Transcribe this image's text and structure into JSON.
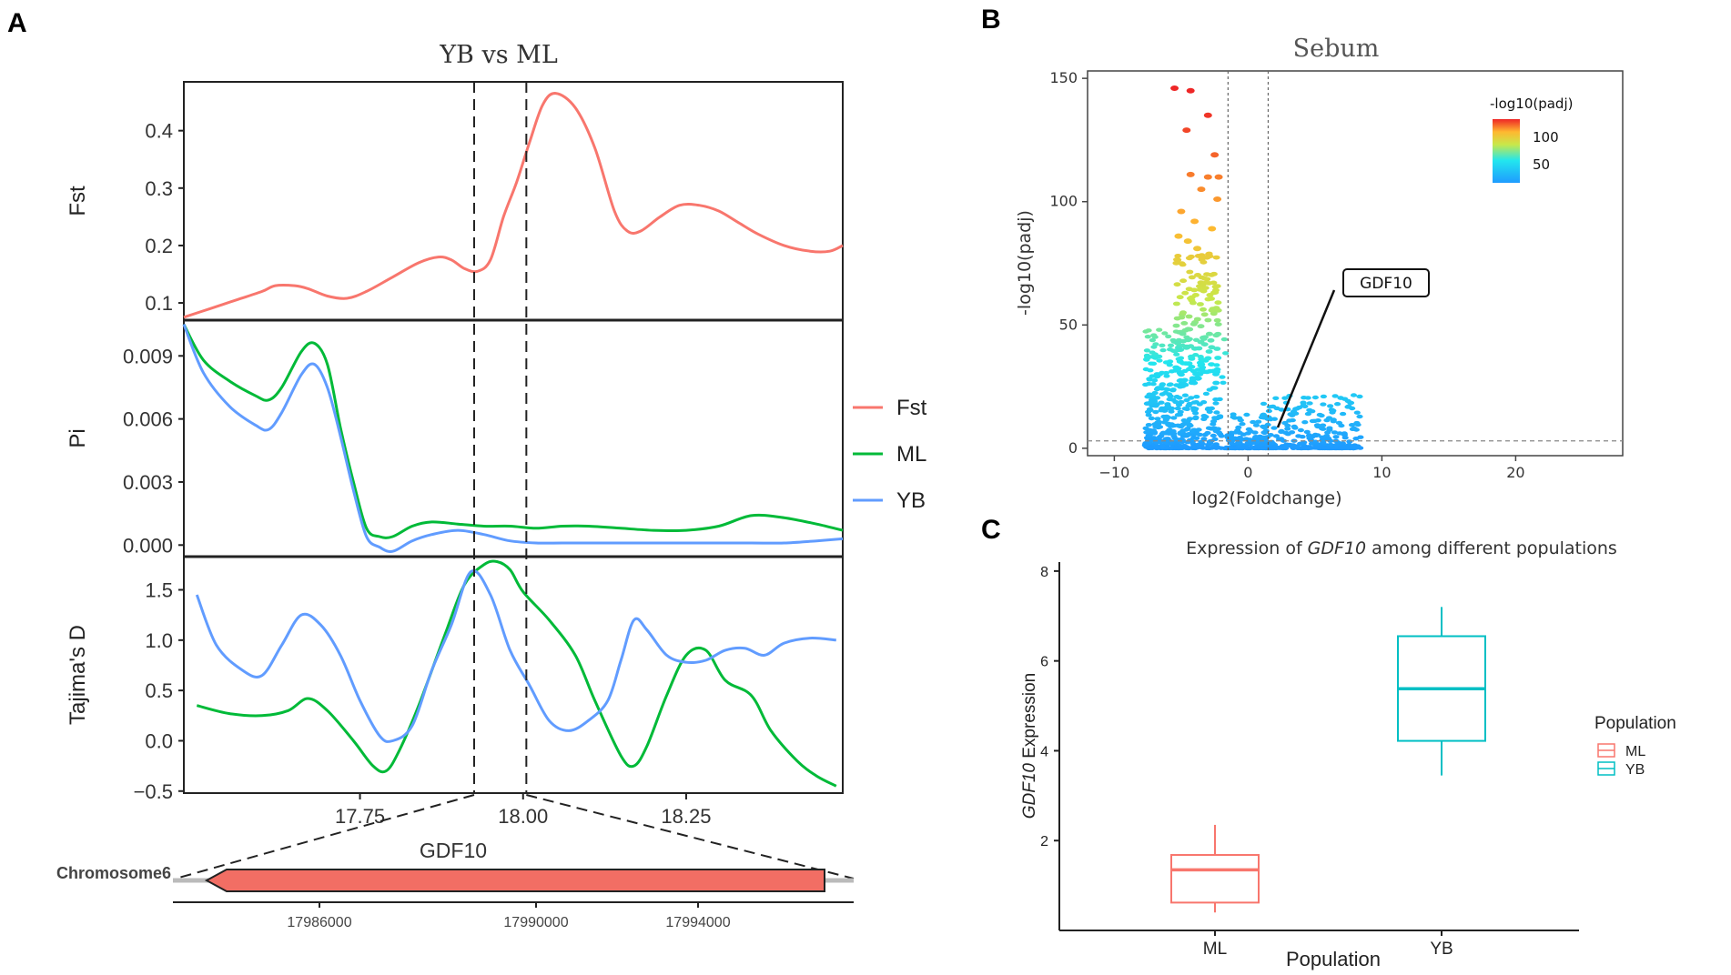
{
  "panel_letters": [
    "A",
    "B",
    "C"
  ],
  "chart_data": [
    {
      "type": "line",
      "title": "YB vs ML",
      "xlabel": "",
      "x_ticks": [
        "17.75",
        "18.00",
        "18.25"
      ],
      "xlim": [
        17.48,
        18.49
      ],
      "selected_region": [
        17.925,
        18.005
      ],
      "colors": {
        "Fst": "#F8766D",
        "ML": "#00BA38",
        "YB": "#619CFF"
      },
      "legend": [
        "Fst",
        "ML",
        "YB"
      ],
      "subplots": [
        {
          "ylabel": "Fst",
          "ylim": [
            0.07,
            0.485
          ],
          "y_ticks": [
            "0.1",
            "0.2",
            "0.3",
            "0.4"
          ],
          "series": [
            {
              "name": "Fst",
              "x": [
                17.48,
                17.52,
                17.56,
                17.6,
                17.62,
                17.65,
                17.67,
                17.7,
                17.73,
                17.76,
                17.8,
                17.84,
                17.87,
                17.89,
                17.91,
                17.93,
                17.95,
                17.97,
                17.99,
                18.01,
                18.03,
                18.05,
                18.08,
                18.11,
                18.14,
                18.16,
                18.18,
                18.21,
                18.24,
                18.27,
                18.3,
                18.33,
                18.36,
                18.4,
                18.44,
                18.47,
                18.49
              ],
              "values": [
                0.075,
                0.09,
                0.105,
                0.12,
                0.13,
                0.13,
                0.125,
                0.112,
                0.108,
                0.12,
                0.145,
                0.17,
                0.18,
                0.175,
                0.16,
                0.155,
                0.175,
                0.25,
                0.31,
                0.38,
                0.445,
                0.465,
                0.44,
                0.37,
                0.26,
                0.225,
                0.225,
                0.25,
                0.27,
                0.27,
                0.26,
                0.24,
                0.22,
                0.2,
                0.19,
                0.19,
                0.2
              ]
            }
          ]
        },
        {
          "ylabel": "Pi",
          "ylim": [
            -0.00055,
            0.0107
          ],
          "y_ticks": [
            "0.000",
            "0.003",
            "0.006",
            "0.009"
          ],
          "series": [
            {
              "name": "ML",
              "x": [
                17.48,
                17.51,
                17.55,
                17.59,
                17.61,
                17.63,
                17.66,
                17.68,
                17.7,
                17.72,
                17.74,
                17.76,
                17.78,
                17.8,
                17.83,
                17.86,
                17.9,
                17.94,
                17.98,
                18.02,
                18.06,
                18.1,
                18.15,
                18.2,
                18.25,
                18.3,
                18.35,
                18.4,
                18.45,
                18.49
              ],
              "values": [
                0.0105,
                0.0088,
                0.0078,
                0.0071,
                0.0069,
                0.0075,
                0.0092,
                0.0096,
                0.0086,
                0.0056,
                0.003,
                0.0008,
                0.0004,
                0.0004,
                0.0009,
                0.0011,
                0.001,
                0.0009,
                0.0009,
                0.0008,
                0.0009,
                0.0009,
                0.0008,
                0.0007,
                0.0007,
                0.0009,
                0.0014,
                0.0013,
                0.001,
                0.0007
              ]
            },
            {
              "name": "YB",
              "x": [
                17.48,
                17.51,
                17.55,
                17.59,
                17.61,
                17.63,
                17.66,
                17.68,
                17.7,
                17.72,
                17.74,
                17.76,
                17.78,
                17.8,
                17.83,
                17.86,
                17.9,
                17.94,
                17.98,
                18.02,
                18.06,
                18.1,
                18.15,
                18.2,
                18.25,
                18.3,
                18.35,
                18.4,
                18.45,
                18.49
              ],
              "values": [
                0.0105,
                0.0082,
                0.0066,
                0.0057,
                0.0055,
                0.0063,
                0.0081,
                0.0086,
                0.0075,
                0.0052,
                0.0026,
                0.0004,
                -0.0001,
                -0.0003,
                0.0002,
                0.0005,
                0.0007,
                0.0005,
                0.0002,
                0.0001,
                0.0001,
                0.0001,
                0.0001,
                0.0001,
                0.0001,
                0.0001,
                0.0001,
                0.0001,
                0.0002,
                0.0003
              ]
            }
          ]
        },
        {
          "ylabel": "Tajima's D",
          "ylim": [
            -0.52,
            1.83
          ],
          "y_ticks": [
            "−0.5",
            "0.0",
            "0.5",
            "1.0",
            "1.5"
          ],
          "series": [
            {
              "name": "ML",
              "x": [
                17.5,
                17.55,
                17.6,
                17.64,
                17.67,
                17.7,
                17.74,
                17.77,
                17.79,
                17.81,
                17.84,
                17.88,
                17.91,
                17.94,
                17.96,
                17.98,
                18.0,
                18.04,
                18.08,
                18.11,
                18.15,
                18.17,
                18.19,
                18.22,
                18.25,
                18.28,
                18.31,
                18.35,
                18.38,
                18.42,
                18.45,
                18.48
              ],
              "values": [
                0.35,
                0.27,
                0.25,
                0.3,
                0.42,
                0.3,
                0.0,
                -0.25,
                -0.3,
                -0.1,
                0.35,
                1.05,
                1.55,
                1.75,
                1.78,
                1.7,
                1.48,
                1.2,
                0.85,
                0.4,
                -0.15,
                -0.25,
                -0.05,
                0.45,
                0.85,
                0.9,
                0.6,
                0.45,
                0.1,
                -0.2,
                -0.35,
                -0.45
              ]
            },
            {
              "name": "YB",
              "x": [
                17.5,
                17.53,
                17.57,
                17.6,
                17.63,
                17.66,
                17.69,
                17.72,
                17.75,
                17.78,
                17.8,
                17.83,
                17.86,
                17.89,
                17.92,
                17.95,
                17.98,
                18.01,
                18.04,
                18.07,
                18.1,
                18.13,
                18.15,
                18.17,
                18.19,
                18.22,
                18.25,
                18.28,
                18.31,
                18.34,
                18.37,
                18.4,
                18.44,
                18.48
              ],
              "values": [
                1.45,
                0.95,
                0.7,
                0.65,
                0.95,
                1.25,
                1.15,
                0.85,
                0.4,
                0.05,
                0.0,
                0.15,
                0.7,
                1.15,
                1.68,
                1.45,
                0.9,
                0.55,
                0.2,
                0.1,
                0.2,
                0.4,
                0.8,
                1.2,
                1.1,
                0.85,
                0.78,
                0.8,
                0.9,
                0.92,
                0.85,
                0.97,
                1.02,
                1.0
              ]
            }
          ]
        }
      ]
    },
    {
      "type": "scatter",
      "title": "Sebum",
      "xlabel": "log2(Foldchange)",
      "ylabel": "-log10(padj)",
      "xlim": [
        -12,
        28
      ],
      "ylim": [
        -3,
        153
      ],
      "x_ticks": [
        -10,
        0,
        10,
        20
      ],
      "y_ticks": [
        0,
        50,
        100,
        150
      ],
      "vlines": [
        -1.5,
        1.5
      ],
      "hline": 3,
      "legend_title": "-log10(padj)",
      "legend_ticks": [
        50,
        100
      ],
      "annotation": {
        "label": "GDF10",
        "x": 1.8,
        "y": 6
      },
      "top_points": [
        {
          "x": -5.5,
          "y": 146
        },
        {
          "x": -4.3,
          "y": 145
        },
        {
          "x": -3.0,
          "y": 135
        },
        {
          "x": -4.6,
          "y": 129
        },
        {
          "x": -2.5,
          "y": 119
        },
        {
          "x": -4.3,
          "y": 111
        },
        {
          "x": -3.0,
          "y": 110
        },
        {
          "x": -2.2,
          "y": 110
        },
        {
          "x": -3.5,
          "y": 105
        },
        {
          "x": -2.3,
          "y": 101
        },
        {
          "x": -5.0,
          "y": 96
        },
        {
          "x": -4.0,
          "y": 92
        },
        {
          "x": -2.7,
          "y": 89
        },
        {
          "x": -5.2,
          "y": 86
        },
        {
          "x": -4.5,
          "y": 84
        },
        {
          "x": -3.8,
          "y": 81
        }
      ]
    },
    {
      "type": "box",
      "title_prefix": "Expression of ",
      "title_gene": "GDF10",
      "title_suffix": " among different populations",
      "xlabel": "Population",
      "ylabel_gene": "GDF10",
      "ylabel_suffix": " Expression",
      "categories": [
        "ML",
        "YB"
      ],
      "colors": {
        "ML": "#F8766D",
        "YB": "#00BFC4"
      },
      "ylim": [
        0,
        8.2
      ],
      "y_ticks": [
        2,
        4,
        6,
        8
      ],
      "legend_title": "Population",
      "boxes": [
        {
          "name": "ML",
          "min": 0.4,
          "q1": 0.62,
          "median": 1.35,
          "q3": 1.68,
          "max": 2.35
        },
        {
          "name": "YB",
          "min": 3.45,
          "q1": 4.22,
          "median": 5.38,
          "q3": 6.55,
          "max": 7.2
        }
      ]
    }
  ],
  "gene_track": {
    "chromosome": "Chromosome6",
    "gene": "GDF10",
    "ticks": [
      "17986000",
      "17990000",
      "17994000"
    ]
  }
}
